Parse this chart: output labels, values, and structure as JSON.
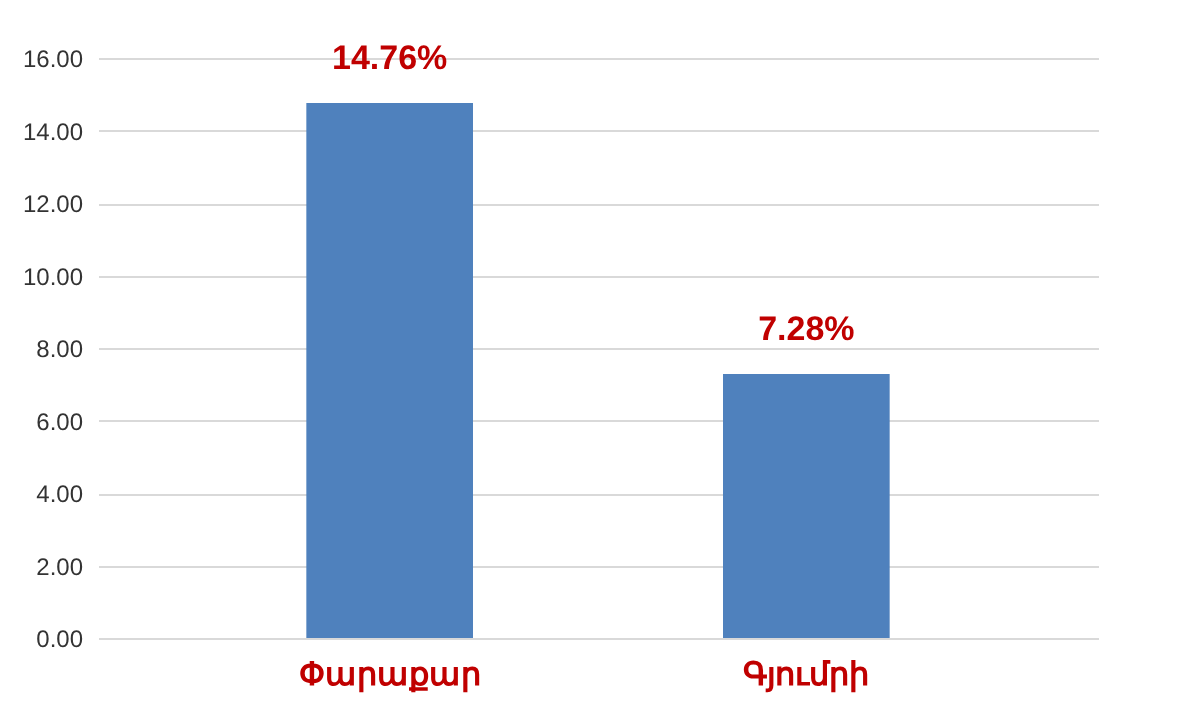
{
  "chart_data": {
    "type": "bar",
    "categories": [
      "Փարաքար",
      "Գյումրի"
    ],
    "values": [
      14.76,
      7.28
    ],
    "color": "#4f81bd",
    "value_labels": [
      "14.76%",
      "7.28%"
    ],
    "ylim": [
      0,
      16
    ],
    "yticks": [
      {
        "value": 0,
        "label": "0.00"
      },
      {
        "value": 2,
        "label": "2.00"
      },
      {
        "value": 4,
        "label": "4.00"
      },
      {
        "value": 6,
        "label": "6.00"
      },
      {
        "value": 8,
        "label": "8.00"
      },
      {
        "value": 10,
        "label": "10.00"
      },
      {
        "value": 12,
        "label": "12.00"
      },
      {
        "value": 14,
        "label": "14.00"
      },
      {
        "value": 16,
        "label": "16.00"
      }
    ],
    "grid": true
  }
}
